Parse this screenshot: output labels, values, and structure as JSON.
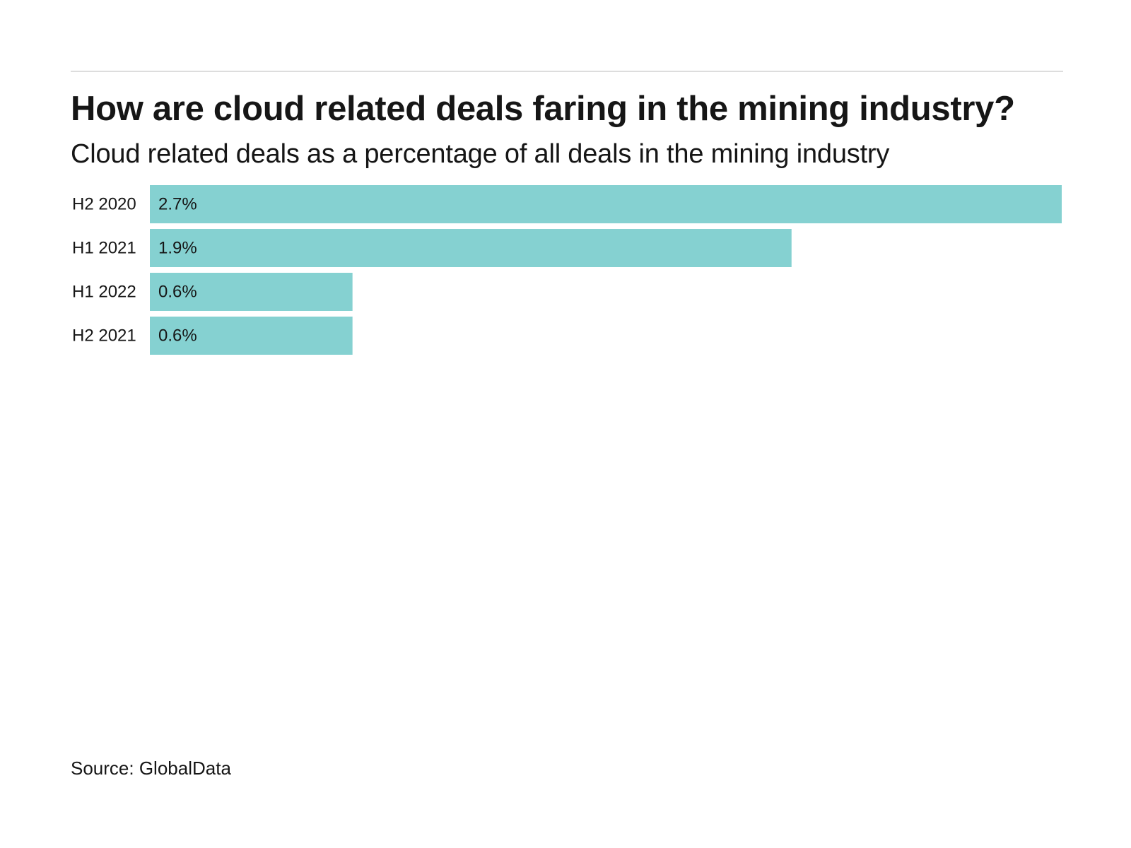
{
  "header": {
    "title": "How are cloud related deals faring in the mining industry?",
    "subtitle": "Cloud related deals as a percentage of all deals in the mining industry"
  },
  "footer": {
    "source": "Source: GlobalData"
  },
  "colors": {
    "bar": "#85d1d1",
    "text": "#161616",
    "rule": "#dddddd"
  },
  "chart_data": {
    "type": "bar",
    "orientation": "horizontal",
    "title": "How are cloud related deals faring in the mining industry?",
    "subtitle": "Cloud related deals as a percentage of all deals in the mining industry",
    "categories": [
      "H2 2020",
      "H1 2021",
      "H1 2022",
      "H2 2021"
    ],
    "values": [
      2.7,
      1.9,
      0.6,
      0.6
    ],
    "value_labels": [
      "2.7%",
      "1.9%",
      "0.6%",
      "0.6%"
    ],
    "unit": "%",
    "xlim": [
      0,
      2.7
    ],
    "xlabel": "",
    "ylabel": "",
    "grid": false,
    "legend": "none"
  }
}
